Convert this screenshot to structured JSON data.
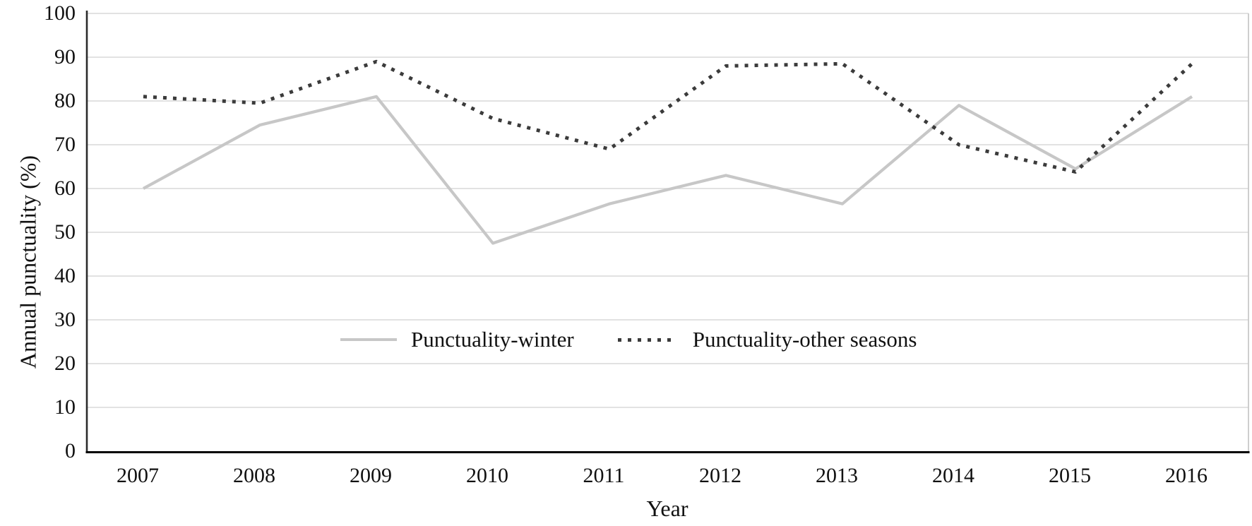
{
  "figure_title": "",
  "chart_data": {
    "type": "line",
    "categories": [
      "2007",
      "2008",
      "2009",
      "2010",
      "2011",
      "2012",
      "2013",
      "2014",
      "2015",
      "2016"
    ],
    "series": [
      {
        "name": "Punctuality-winter",
        "style": "solid",
        "color": "#c7c7c7",
        "values": [
          60,
          74.5,
          81,
          47.5,
          56.5,
          63,
          56.5,
          79,
          64.5,
          81
        ]
      },
      {
        "name": "Punctuality-other seasons",
        "style": "dotted",
        "color": "#3b3b3b",
        "values": [
          81,
          79.5,
          89,
          76,
          69,
          88,
          88.5,
          70,
          63.8,
          88.5
        ]
      }
    ],
    "xlabel": "Year",
    "ylabel": "Annual punctuality (%)",
    "ylim": [
      0,
      100
    ],
    "yticks": [
      0,
      10,
      20,
      30,
      40,
      50,
      60,
      70,
      80,
      90,
      100
    ],
    "grid": "horizontal",
    "legend_position": "inside-center"
  },
  "colors": {
    "gridline": "#d9d9d9",
    "plot_right_border": "#c9c9c9",
    "y_axis_line": "#2b2b2b",
    "x_axis_line": "#000000",
    "text": "#111111",
    "background": "#ffffff"
  }
}
